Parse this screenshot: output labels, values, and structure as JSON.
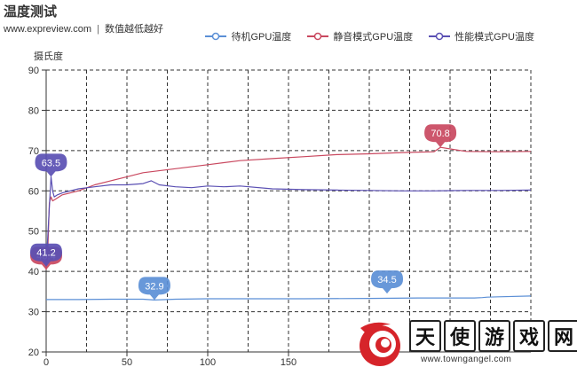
{
  "header": {
    "title": "温度测试",
    "site": "www.expreview.com",
    "separator": "|",
    "note": "数值越低越好"
  },
  "watermark": {
    "chars": [
      "天",
      "使",
      "游",
      "戏",
      "网"
    ],
    "url": "www.towngangel.com"
  },
  "chart_data": {
    "type": "line",
    "title": "温度测试",
    "ylabel": "摄氏度",
    "xlabel": "",
    "xlim": [
      0,
      300
    ],
    "ylim": [
      20,
      90
    ],
    "x_ticks": [
      0,
      50,
      100,
      150
    ],
    "y_ticks": [
      20,
      30,
      40,
      50,
      60,
      70,
      80,
      90
    ],
    "grid": true,
    "legend_position": "top-right",
    "series": [
      {
        "name": "待机GPU温度",
        "color": "#5b8fd6",
        "x": [
          0,
          20,
          40,
          60,
          67,
          80,
          100,
          130,
          160,
          200,
          230,
          250,
          265,
          270,
          273,
          280,
          300
        ],
        "y": [
          33.0,
          33.0,
          33.1,
          33.1,
          32.9,
          33.1,
          33.2,
          33.2,
          33.2,
          33.3,
          33.4,
          33.4,
          33.4,
          33.5,
          33.6,
          33.7,
          33.9
        ],
        "markers": [
          {
            "x": 67,
            "y": 32.9,
            "label": "32.9"
          },
          {
            "x": 211,
            "y": 34.5,
            "label": "34.5"
          }
        ]
      },
      {
        "name": "静音模式GPU温度",
        "color": "#c9485f",
        "x": [
          0,
          1,
          2,
          3,
          4,
          6,
          10,
          20,
          30,
          40,
          50,
          60,
          80,
          100,
          120,
          140,
          160,
          180,
          200,
          220,
          240,
          244,
          260,
          280,
          300
        ],
        "y": [
          40.4,
          45,
          57,
          58.5,
          57.5,
          58,
          59,
          60,
          61.5,
          62.5,
          63.5,
          64.5,
          65.5,
          66.5,
          67.5,
          68.0,
          68.5,
          69.0,
          69.2,
          69.5,
          69.7,
          70.8,
          69.8,
          69.7,
          69.8
        ],
        "markers": [
          {
            "x": 244,
            "y": 70.8,
            "label": "70.8"
          },
          {
            "x": 0,
            "y": 40.4,
            "label": "40.4"
          }
        ]
      },
      {
        "name": "性能模式GPU温度",
        "color": "#5a4fb3",
        "x": [
          0,
          2,
          3,
          4,
          5,
          7,
          10,
          20,
          30,
          40,
          50,
          60,
          65,
          70,
          80,
          90,
          100,
          110,
          120,
          140,
          160,
          180,
          200,
          220,
          240,
          260,
          280,
          300
        ],
        "y": [
          41.2,
          56,
          63.5,
          60,
          58.5,
          59,
          59.5,
          60.5,
          61.0,
          61.5,
          61.5,
          61.8,
          62.5,
          61.5,
          61.0,
          60.8,
          61.2,
          61.0,
          61.2,
          60.5,
          60.3,
          60.2,
          60.1,
          60.0,
          60.0,
          60.1,
          60.1,
          60.2
        ],
        "markers": [
          {
            "x": 3,
            "y": 63.5,
            "label": "63.5"
          },
          {
            "x": 0,
            "y": 41.2,
            "label": "41.2"
          }
        ]
      }
    ]
  }
}
